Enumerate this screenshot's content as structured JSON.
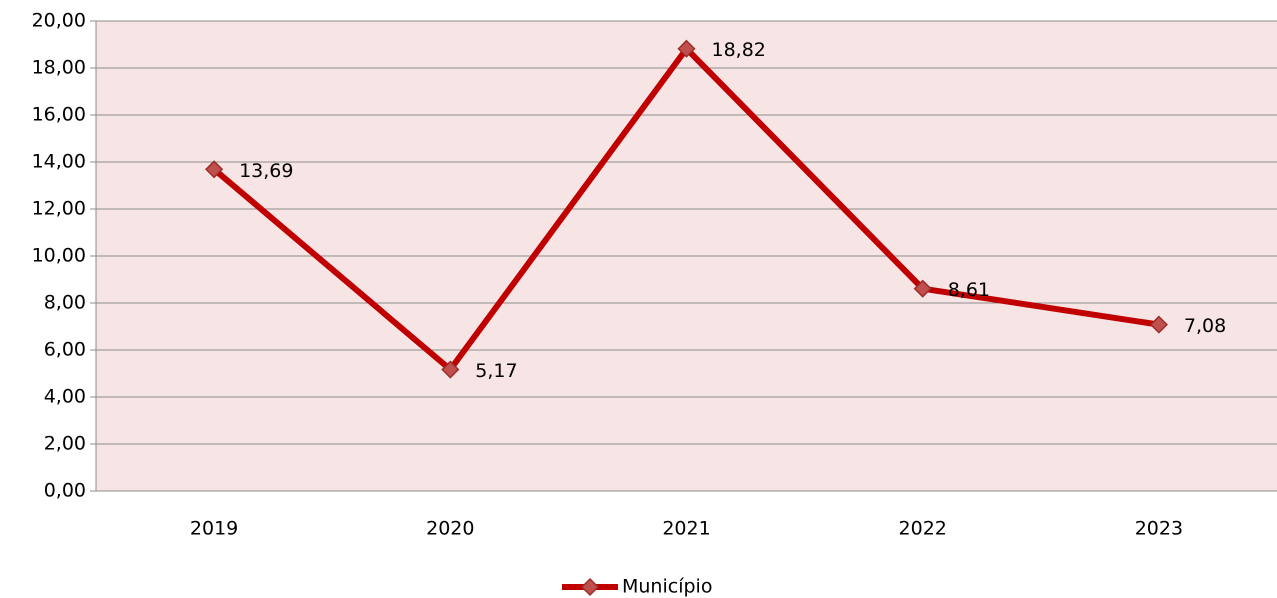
{
  "chart_data": {
    "type": "line",
    "categories": [
      "2019",
      "2020",
      "2021",
      "2022",
      "2023"
    ],
    "series": [
      {
        "name": "Município",
        "color": "#c00000",
        "marker_color": "#c0504d",
        "values": [
          13.69,
          5.17,
          18.82,
          8.61,
          7.08
        ],
        "value_labels": [
          "13,69",
          "5,17",
          "18,82",
          "8,61",
          "7,08"
        ]
      }
    ],
    "ylim": [
      0,
      20
    ],
    "yticks": [
      {
        "value": 0,
        "label": "0,00"
      },
      {
        "value": 2,
        "label": "2,00"
      },
      {
        "value": 4,
        "label": "4,00"
      },
      {
        "value": 6,
        "label": "6,00"
      },
      {
        "value": 8,
        "label": "8,00"
      },
      {
        "value": 10,
        "label": "10,00"
      },
      {
        "value": 12,
        "label": "12,00"
      },
      {
        "value": 14,
        "label": "14,00"
      },
      {
        "value": 16,
        "label": "16,00"
      },
      {
        "value": 18,
        "label": "18,00"
      },
      {
        "value": 20,
        "label": "20,00"
      }
    ],
    "grid": true,
    "legend": "bottom"
  }
}
